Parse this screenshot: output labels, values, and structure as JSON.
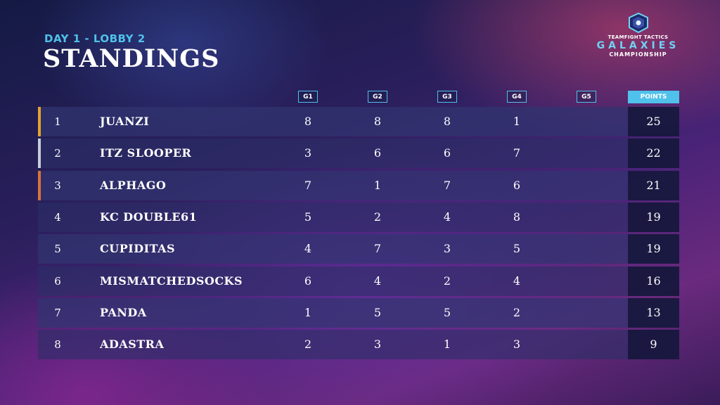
{
  "header": {
    "subtitle": "DAY 1 - LOBBY 2",
    "title": "STANDINGS"
  },
  "logo": {
    "line1": "TEAMFIGHT TACTICS",
    "line2": "GALAXIES",
    "line3": "CHAMPIONSHIP"
  },
  "table": {
    "columns": [
      "G1",
      "G2",
      "G3",
      "G4",
      "G5"
    ],
    "points_label": "POINTS",
    "accent_colors": [
      "#e3a42d",
      "#c9ccd6",
      "#d9743a"
    ],
    "rows": [
      {
        "rank": "1",
        "name": "JUANZI",
        "g1": "8",
        "g2": "8",
        "g3": "8",
        "g4": "1",
        "g5": "",
        "points": "25"
      },
      {
        "rank": "2",
        "name": "ITZ SLOOPER",
        "g1": "3",
        "g2": "6",
        "g3": "6",
        "g4": "7",
        "g5": "",
        "points": "22"
      },
      {
        "rank": "3",
        "name": "ALPHAGO",
        "g1": "7",
        "g2": "1",
        "g3": "7",
        "g4": "6",
        "g5": "",
        "points": "21"
      },
      {
        "rank": "4",
        "name": "KC DOUBLE61",
        "g1": "5",
        "g2": "2",
        "g3": "4",
        "g4": "8",
        "g5": "",
        "points": "19"
      },
      {
        "rank": "5",
        "name": "CUPIDITAS",
        "g1": "4",
        "g2": "7",
        "g3": "3",
        "g4": "5",
        "g5": "",
        "points": "19"
      },
      {
        "rank": "6",
        "name": "MISMATCHEDSOCKS",
        "g1": "6",
        "g2": "4",
        "g3": "2",
        "g4": "4",
        "g5": "",
        "points": "16"
      },
      {
        "rank": "7",
        "name": "PANDA",
        "g1": "1",
        "g2": "5",
        "g3": "5",
        "g4": "2",
        "g5": "",
        "points": "13"
      },
      {
        "rank": "8",
        "name": "ADASTRA",
        "g1": "2",
        "g2": "3",
        "g3": "1",
        "g4": "3",
        "g5": "",
        "points": "9"
      }
    ]
  }
}
